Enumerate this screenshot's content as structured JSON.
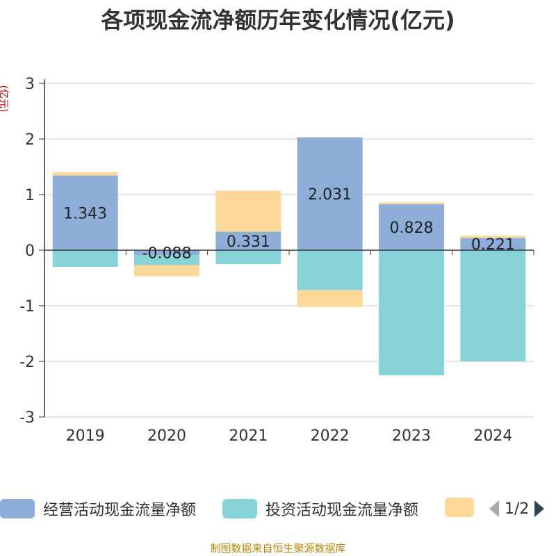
{
  "chart_data": {
    "type": "bar",
    "stacked": true,
    "title": "各项现金流净额历年变化情况(亿元)",
    "ylabel": "(亿元)",
    "xlabel": "",
    "ylim": [
      -3,
      3
    ],
    "yticks": [
      3,
      2,
      1,
      0,
      -1,
      -2,
      -3
    ],
    "categories": [
      "2019",
      "2020",
      "2021",
      "2022",
      "2023",
      "2024"
    ],
    "series": [
      {
        "name": "经营活动现金流量净额",
        "values": [
          1.343,
          -0.088,
          0.331,
          2.031,
          0.828,
          0.221
        ],
        "color": "#8eadd9"
      },
      {
        "name": "投资活动现金流量净额",
        "values": [
          -0.3,
          -0.18,
          -0.25,
          -0.72,
          -2.25,
          -2.0
        ],
        "color": "#86d4d7"
      },
      {
        "name": "",
        "values": [
          0.06,
          -0.2,
          0.74,
          -0.3,
          0.03,
          0.04
        ],
        "color": "#fdd899"
      }
    ],
    "data_labels": [
      "1.343",
      "-0.088",
      "0.331",
      "2.031",
      "0.828",
      "0.221"
    ]
  },
  "legend": {
    "items": [
      {
        "label": "经营活动现金流量净额",
        "color": "#8eadd9"
      },
      {
        "label": "投资活动现金流量净额",
        "color": "#86d4d7"
      },
      {
        "label": "",
        "color": "#fdd899"
      }
    ],
    "page_label": "1/2"
  },
  "footer": "制图数据来自恒生聚源数据库"
}
